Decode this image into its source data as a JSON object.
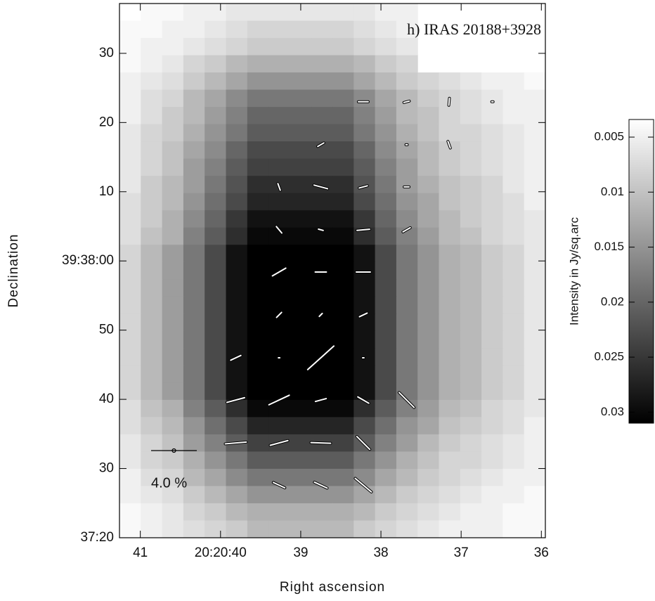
{
  "chart_data": {
    "type": "heatmap",
    "title": "h) IRAS 20188+3928",
    "xlabel": "Right ascension",
    "ylabel": "Declination",
    "xlim": [
      41.26,
      35.95
    ],
    "xticks": [
      41,
      {
        "value": 40,
        "label": "20:20:40"
      },
      39,
      38,
      37,
      36
    ],
    "ylim": [
      20,
      97.2
    ],
    "yticks": [
      {
        "value": 20,
        "label": "37:20"
      },
      30,
      40,
      50,
      {
        "value": 60,
        "label": "39:38:00"
      },
      {
        "value": 70,
        "label": "10"
      },
      {
        "value": 80,
        "label": "20"
      },
      {
        "value": 90,
        "label": "30"
      }
    ],
    "heatmap": {
      "values": [
        [
          0.003,
          0.004,
          0.004,
          0.005,
          0.005,
          0.006,
          0.006,
          0.006,
          0.006,
          0.006,
          0.006,
          0.006,
          0.005,
          0.005,
          null,
          null,
          null,
          null,
          null,
          null
        ],
        [
          0.004,
          0.004,
          0.005,
          0.005,
          0.006,
          0.007,
          0.008,
          0.008,
          0.008,
          0.008,
          0.008,
          0.007,
          0.006,
          0.005,
          null,
          null,
          null,
          null,
          null,
          null
        ],
        [
          0.004,
          0.005,
          0.005,
          0.006,
          0.007,
          0.008,
          0.009,
          0.009,
          0.009,
          0.009,
          0.009,
          0.008,
          0.007,
          0.006,
          null,
          null,
          null,
          null,
          null,
          null
        ],
        [
          0.004,
          0.005,
          0.006,
          0.008,
          0.009,
          0.011,
          0.012,
          0.012,
          0.012,
          0.012,
          0.012,
          0.011,
          0.009,
          0.008,
          null,
          null,
          null,
          null,
          null,
          null
        ],
        [
          0.005,
          0.006,
          0.007,
          0.009,
          0.011,
          0.013,
          0.015,
          0.015,
          0.015,
          0.015,
          0.015,
          0.013,
          0.011,
          0.009,
          0.008,
          0.007,
          0.006,
          0.005,
          0.005,
          0.004
        ],
        [
          0.005,
          0.007,
          0.008,
          0.011,
          0.013,
          0.016,
          0.018,
          0.018,
          0.018,
          0.018,
          0.018,
          0.016,
          0.013,
          0.011,
          0.009,
          0.008,
          0.007,
          0.006,
          0.005,
          0.005
        ],
        [
          0.005,
          0.007,
          0.009,
          0.011,
          0.014,
          0.017,
          0.02,
          0.02,
          0.02,
          0.02,
          0.02,
          0.017,
          0.014,
          0.011,
          0.01,
          0.008,
          0.007,
          0.006,
          0.005,
          0.005
        ],
        [
          0.006,
          0.008,
          0.009,
          0.012,
          0.015,
          0.018,
          0.021,
          0.021,
          0.021,
          0.021,
          0.021,
          0.018,
          0.015,
          0.012,
          0.01,
          0.008,
          0.008,
          0.007,
          0.006,
          0.005
        ],
        [
          0.006,
          0.008,
          0.01,
          0.013,
          0.016,
          0.02,
          0.023,
          0.023,
          0.023,
          0.023,
          0.023,
          0.02,
          0.016,
          0.013,
          0.011,
          0.009,
          0.008,
          0.007,
          0.006,
          0.005
        ],
        [
          0.006,
          0.008,
          0.01,
          0.014,
          0.017,
          0.021,
          0.024,
          0.024,
          0.024,
          0.024,
          0.024,
          0.021,
          0.017,
          0.014,
          0.011,
          0.009,
          0.008,
          0.007,
          0.006,
          0.005
        ],
        [
          0.006,
          0.009,
          0.011,
          0.014,
          0.018,
          0.022,
          0.026,
          0.026,
          0.026,
          0.026,
          0.026,
          0.022,
          0.018,
          0.014,
          0.012,
          0.01,
          0.009,
          0.008,
          0.006,
          0.005
        ],
        [
          0.007,
          0.009,
          0.011,
          0.015,
          0.019,
          0.023,
          0.027,
          0.027,
          0.027,
          0.027,
          0.027,
          0.023,
          0.019,
          0.015,
          0.013,
          0.01,
          0.009,
          0.008,
          0.007,
          0.005
        ],
        [
          0.007,
          0.009,
          0.012,
          0.016,
          0.02,
          0.025,
          0.029,
          0.029,
          0.029,
          0.029,
          0.029,
          0.025,
          0.02,
          0.016,
          0.013,
          0.011,
          0.009,
          0.008,
          0.007,
          0.006
        ],
        [
          0.007,
          0.01,
          0.012,
          0.017,
          0.021,
          0.026,
          0.03,
          0.03,
          0.03,
          0.03,
          0.03,
          0.026,
          0.021,
          0.017,
          0.014,
          0.011,
          0.01,
          0.008,
          0.007,
          0.006
        ],
        [
          0.008,
          0.011,
          0.014,
          0.018,
          0.023,
          0.029,
          0.031,
          0.031,
          0.031,
          0.031,
          0.031,
          0.029,
          0.023,
          0.018,
          0.015,
          0.012,
          0.011,
          0.009,
          0.008,
          0.006
        ],
        [
          0.008,
          0.011,
          0.014,
          0.018,
          0.023,
          0.029,
          0.031,
          0.031,
          0.031,
          0.031,
          0.031,
          0.029,
          0.023,
          0.018,
          0.015,
          0.012,
          0.011,
          0.009,
          0.008,
          0.006
        ],
        [
          0.008,
          0.011,
          0.014,
          0.018,
          0.023,
          0.029,
          0.031,
          0.031,
          0.031,
          0.031,
          0.031,
          0.029,
          0.023,
          0.018,
          0.015,
          0.012,
          0.011,
          0.009,
          0.008,
          0.006
        ],
        [
          0.008,
          0.011,
          0.014,
          0.018,
          0.023,
          0.029,
          0.031,
          0.031,
          0.031,
          0.031,
          0.031,
          0.029,
          0.023,
          0.018,
          0.015,
          0.012,
          0.011,
          0.009,
          0.008,
          0.006
        ],
        [
          0.008,
          0.011,
          0.014,
          0.018,
          0.023,
          0.029,
          0.031,
          0.031,
          0.031,
          0.031,
          0.031,
          0.029,
          0.023,
          0.018,
          0.015,
          0.012,
          0.011,
          0.009,
          0.008,
          0.006
        ],
        [
          0.008,
          0.011,
          0.014,
          0.018,
          0.023,
          0.029,
          0.031,
          0.031,
          0.031,
          0.031,
          0.031,
          0.029,
          0.023,
          0.018,
          0.015,
          0.012,
          0.011,
          0.009,
          0.008,
          0.006
        ],
        [
          0.008,
          0.011,
          0.014,
          0.018,
          0.023,
          0.029,
          0.031,
          0.031,
          0.031,
          0.031,
          0.031,
          0.029,
          0.023,
          0.018,
          0.015,
          0.012,
          0.011,
          0.009,
          0.008,
          0.006
        ],
        [
          0.008,
          0.011,
          0.014,
          0.018,
          0.023,
          0.029,
          0.031,
          0.031,
          0.031,
          0.031,
          0.031,
          0.029,
          0.023,
          0.018,
          0.015,
          0.012,
          0.011,
          0.009,
          0.008,
          0.006
        ],
        [
          0.008,
          0.011,
          0.014,
          0.018,
          0.023,
          0.029,
          0.031,
          0.031,
          0.031,
          0.031,
          0.031,
          0.029,
          0.023,
          0.018,
          0.015,
          0.012,
          0.011,
          0.009,
          0.008,
          0.006
        ],
        [
          0.007,
          0.01,
          0.012,
          0.017,
          0.021,
          0.026,
          0.03,
          0.03,
          0.03,
          0.03,
          0.03,
          0.026,
          0.021,
          0.017,
          0.014,
          0.011,
          0.01,
          0.008,
          0.007,
          0.006
        ],
        [
          0.007,
          0.009,
          0.011,
          0.015,
          0.019,
          0.023,
          0.027,
          0.027,
          0.027,
          0.027,
          0.027,
          0.023,
          0.019,
          0.015,
          0.013,
          0.01,
          0.009,
          0.008,
          0.007,
          0.005
        ],
        [
          0.006,
          0.008,
          0.01,
          0.014,
          0.017,
          0.021,
          0.024,
          0.024,
          0.024,
          0.024,
          0.024,
          0.021,
          0.017,
          0.014,
          0.011,
          0.009,
          0.008,
          0.007,
          0.006,
          0.005
        ],
        [
          0.006,
          0.008,
          0.009,
          0.012,
          0.015,
          0.018,
          0.021,
          0.021,
          0.021,
          0.021,
          0.021,
          0.018,
          0.015,
          0.012,
          0.01,
          0.008,
          0.008,
          0.007,
          0.006,
          0.005
        ],
        [
          0.005,
          0.007,
          0.008,
          0.011,
          0.013,
          0.016,
          0.018,
          0.018,
          0.018,
          0.018,
          0.018,
          0.016,
          0.013,
          0.011,
          0.009,
          0.008,
          0.007,
          0.006,
          0.005,
          0.005
        ],
        [
          0.005,
          0.006,
          0.007,
          0.009,
          0.011,
          0.013,
          0.015,
          0.015,
          0.015,
          0.015,
          0.015,
          0.013,
          0.011,
          0.009,
          0.008,
          0.007,
          0.006,
          0.005,
          0.005,
          0.004
        ],
        [
          0.004,
          0.005,
          0.006,
          0.008,
          0.009,
          0.011,
          0.012,
          0.012,
          0.012,
          0.012,
          0.012,
          0.011,
          0.009,
          0.008,
          0.007,
          0.006,
          0.005,
          0.005,
          0.004,
          0.004
        ],
        [
          0.004,
          0.005,
          0.006,
          0.007,
          0.008,
          0.009,
          0.011,
          0.011,
          0.011,
          0.011,
          0.011,
          0.009,
          0.008,
          0.007,
          0.006,
          0.005,
          0.005,
          0.005,
          0.004,
          0.004
        ]
      ]
    },
    "colorbar": {
      "label": "Intensity in Jy/sq.arc",
      "lim": [
        0.0034,
        0.031
      ],
      "ticks": [
        0.005,
        0.01,
        0.015,
        0.02,
        0.025,
        0.03
      ]
    },
    "vectors": {
      "ra": [
        38.22,
        37.68,
        37.15,
        36.61,
        38.75,
        37.68,
        37.15,
        39.27,
        38.75,
        38.22,
        37.68,
        39.27,
        38.75,
        38.22,
        37.68,
        39.27,
        38.75,
        38.22,
        39.27,
        38.75,
        38.22,
        39.81,
        39.27,
        38.75,
        38.22,
        39.81,
        39.27,
        38.75,
        38.22,
        37.68,
        39.81,
        39.27,
        38.75,
        38.22,
        39.27,
        38.75,
        38.22
      ],
      "dec": [
        83.0,
        83.0,
        83.0,
        83.0,
        76.8,
        76.8,
        76.8,
        70.7,
        70.7,
        70.7,
        70.7,
        64.5,
        64.5,
        64.5,
        64.5,
        58.4,
        58.4,
        58.4,
        52.2,
        52.2,
        52.2,
        46.0,
        46.0,
        46.0,
        46.0,
        39.9,
        39.9,
        39.9,
        39.9,
        39.9,
        33.7,
        33.7,
        33.7,
        33.7,
        27.6,
        27.6,
        27.6
      ],
      "p": [
        0.86,
        0.49,
        0.62,
        0.12,
        0.62,
        0.12,
        0.62,
        0.62,
        1.23,
        0.74,
        0.43,
        0.74,
        0.43,
        1.11,
        0.74,
        1.35,
        0.98,
        1.23,
        0.62,
        0.37,
        0.74,
        0.98,
        0.12,
        3.08,
        0.12,
        1.6,
        1.97,
        0.98,
        1.11,
        1.85,
        1.85,
        1.6,
        1.72,
        1.6,
        1.11,
        1.23,
        1.85
      ],
      "pa": [
        90,
        105,
        175,
        90,
        120,
        90,
        20,
        20,
        75,
        105,
        90,
        40,
        75,
        95,
        120,
        120,
        90,
        90,
        135,
        135,
        115,
        115,
        90,
        132,
        90,
        105,
        115,
        105,
        60,
        45,
        95,
        105,
        88,
        45,
        65,
        65,
        50
      ]
    },
    "scale_bar": {
      "value": 4,
      "label": "4.0 %"
    }
  }
}
